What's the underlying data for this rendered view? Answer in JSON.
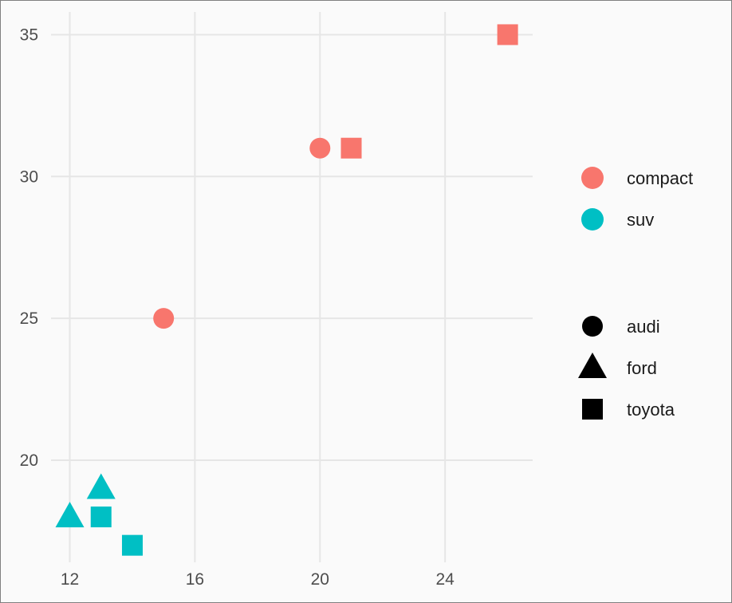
{
  "chart_data": {
    "type": "scatter",
    "title": "",
    "xlabel": "",
    "ylabel": "",
    "xlim": [
      11.4,
      26.8
    ],
    "ylim": [
      16.4,
      35.8
    ],
    "x_ticks": [
      "12",
      "16",
      "20",
      "24"
    ],
    "y_ticks": [
      "20",
      "25",
      "30",
      "35"
    ],
    "x_tick_values": [
      12,
      16,
      20,
      24
    ],
    "y_tick_values": [
      20,
      25,
      30,
      35
    ],
    "grid": true,
    "legend_position": "right",
    "color_legend": [
      {
        "label": "compact",
        "color": "#F8766D"
      },
      {
        "label": "suv",
        "color": "#00BFC4"
      }
    ],
    "shape_legend": [
      {
        "label": "audi",
        "shape": "circle"
      },
      {
        "label": "ford",
        "shape": "triangle"
      },
      {
        "label": "toyota",
        "shape": "square"
      }
    ],
    "points": [
      {
        "x": 15,
        "y": 25,
        "class": "compact",
        "manufacturer": "audi"
      },
      {
        "x": 20,
        "y": 31,
        "class": "compact",
        "manufacturer": "audi"
      },
      {
        "x": 21,
        "y": 31,
        "class": "compact",
        "manufacturer": "toyota"
      },
      {
        "x": 26,
        "y": 35,
        "class": "compact",
        "manufacturer": "toyota"
      },
      {
        "x": 12,
        "y": 18,
        "class": "suv",
        "manufacturer": "ford"
      },
      {
        "x": 13,
        "y": 19,
        "class": "suv",
        "manufacturer": "ford"
      },
      {
        "x": 13,
        "y": 18,
        "class": "suv",
        "manufacturer": "toyota"
      },
      {
        "x": 14,
        "y": 17,
        "class": "suv",
        "manufacturer": "toyota"
      }
    ]
  }
}
